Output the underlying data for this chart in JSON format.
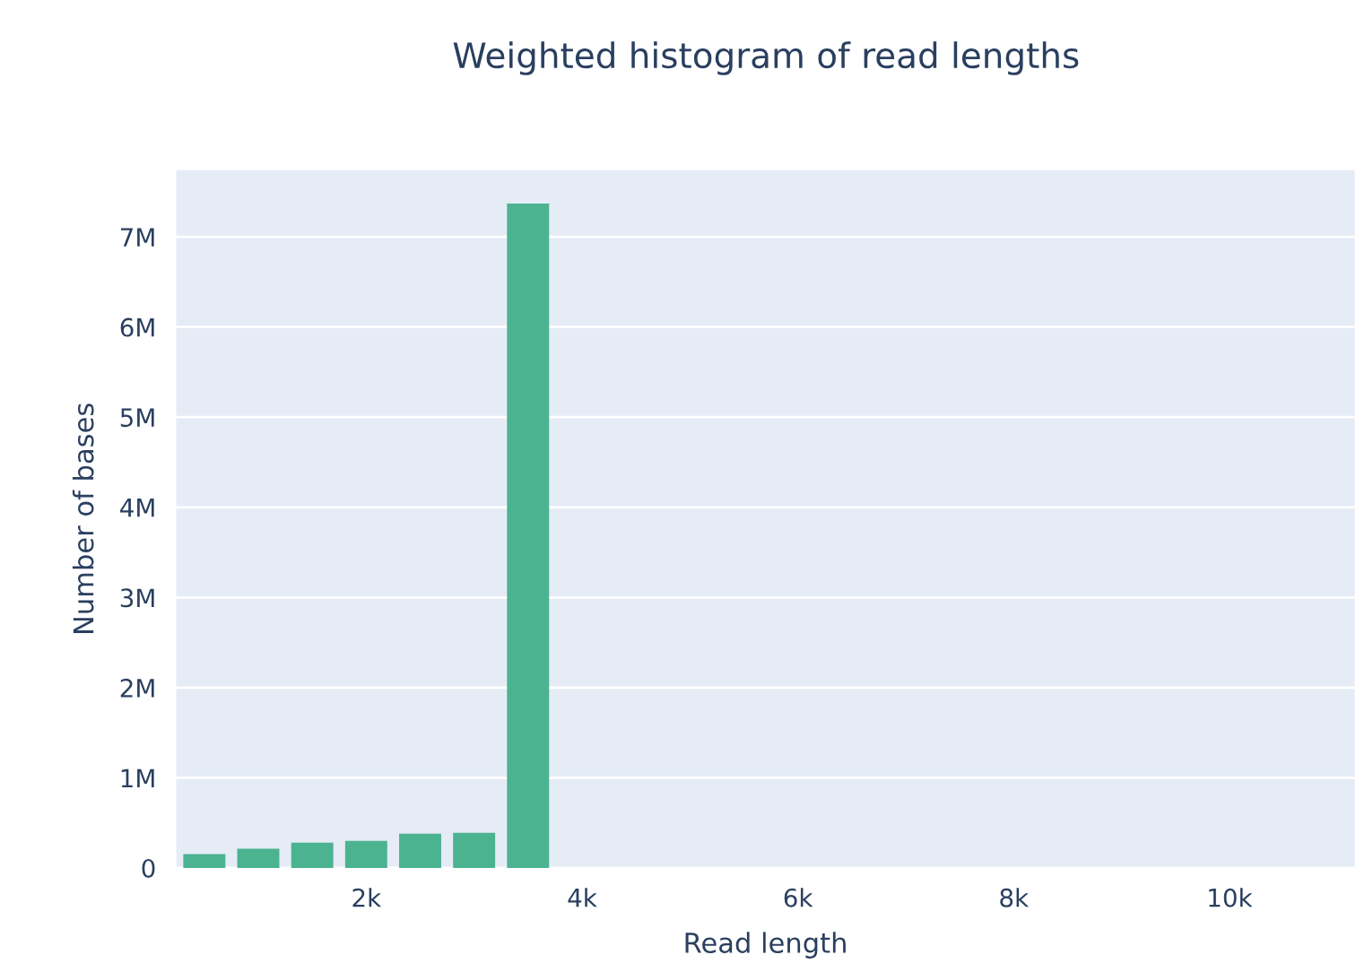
{
  "chart_data": {
    "type": "histogram",
    "title": "Weighted histogram of read lengths",
    "xlabel": "Read length",
    "ylabel": "Number of bases",
    "bins": [
      250,
      750,
      1250,
      1750,
      2250,
      2750,
      3250,
      3750
    ],
    "values": [
      155000,
      215000,
      280000,
      300000,
      380000,
      390000,
      7370000
    ],
    "color": "#4cb391",
    "xlim": [
      240,
      11160
    ],
    "xticks": [
      {
        "value": 2000,
        "label": "2k"
      },
      {
        "value": 4000,
        "label": "4k"
      },
      {
        "value": 6000,
        "label": "6k"
      },
      {
        "value": 8000,
        "label": "8k"
      },
      {
        "value": 10000,
        "label": "10k"
      }
    ],
    "ylim": [
      0,
      7740000
    ],
    "yticks": [
      0,
      {
        "value": 1000000,
        "label": "1M"
      },
      {
        "value": 2000000,
        "label": "2M"
      },
      {
        "value": 3000000,
        "label": "3M"
      },
      {
        "value": 4000000,
        "label": "4M"
      },
      {
        "value": 5000000,
        "label": "5M"
      },
      {
        "value": 6000000,
        "label": "6M"
      },
      {
        "value": 7000000,
        "label": "7M"
      }
    ],
    "grid": "y"
  }
}
